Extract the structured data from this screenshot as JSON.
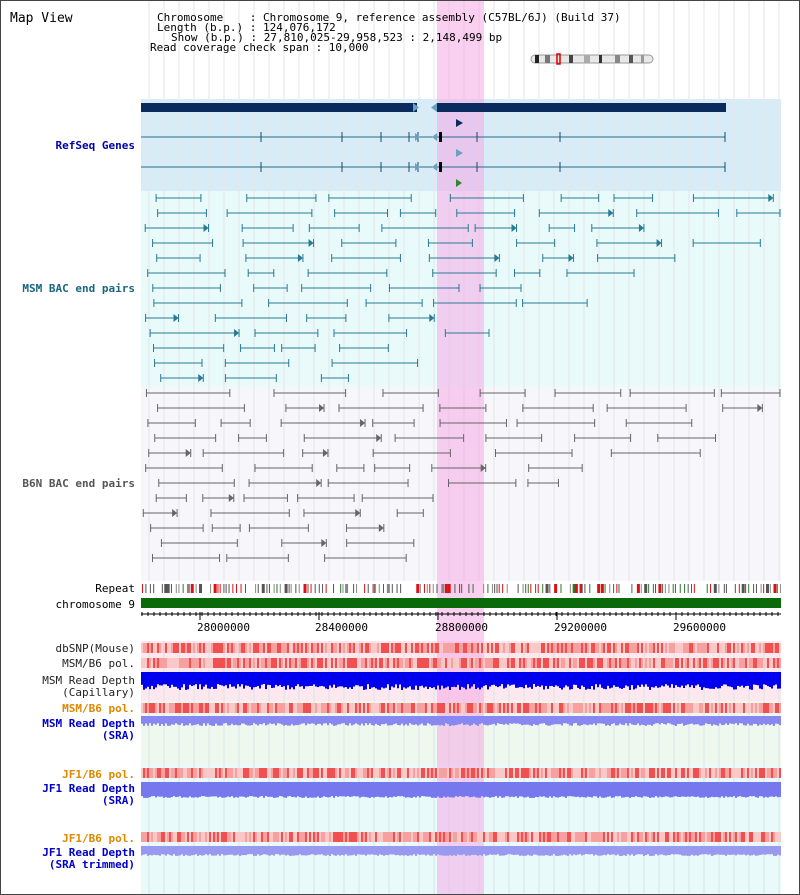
{
  "view_title": "Map View",
  "info": {
    "chromosome_line": "Chromosome    : Chromosome 9, reference assembly (C57BL/6J) (Build 37)",
    "length_line": "Length (b.p.) : 124,076,172",
    "show_line": "Show (b.p.) : 27,810,025-29,958,523 : 2,148,499 bp",
    "coverage_line": "Read coverage check span : 10,000"
  },
  "tracks": {
    "refseq": "RefSeq Genes",
    "msm_bac": "MSM BAC end pairs",
    "b6n_bac": "B6N BAC end pairs",
    "repeat": "Repeat",
    "chromosome": "chromosome 9",
    "dbsnp": "dbSNP(Mouse)",
    "msm_b6_pol": "MSM/B6 pol.",
    "msm_depth_cap": "MSM Read Depth",
    "msm_depth_cap_sub": "(Capillary)",
    "msm_b6_pol_sra": "MSM/B6 pol.",
    "msm_depth_sra": "MSM Read Depth",
    "msm_depth_sra_sub": "(SRA)",
    "jf1_pol": "JF1/B6 pol.",
    "jf1_depth": "JF1 Read Depth",
    "jf1_depth_sub": "(SRA)",
    "jf1_pol_trim": "JF1/B6 pol.",
    "jf1_depth_trim": "JF1 Read Depth",
    "jf1_depth_trim_sub": "(SRA trimmed)"
  },
  "axis": {
    "ticks": [
      "28000000",
      "28400000",
      "28800000",
      "29200000",
      "29600000"
    ]
  },
  "colors": {
    "refseq_label": "#0000aa",
    "msm_bac_label": "#1a6680",
    "b6n_bac_label": "#555555",
    "pol_label_orange": "#dd8800",
    "sra_label_blue": "#0000cc",
    "gene_bar": "#0b2a5e",
    "gene_line": "#2a6a8a",
    "msm_line": "#2a7a94",
    "b6n_line": "#666666",
    "chromosome_bar": "#0a6a0a",
    "highlight": "#f5aae6"
  }
}
